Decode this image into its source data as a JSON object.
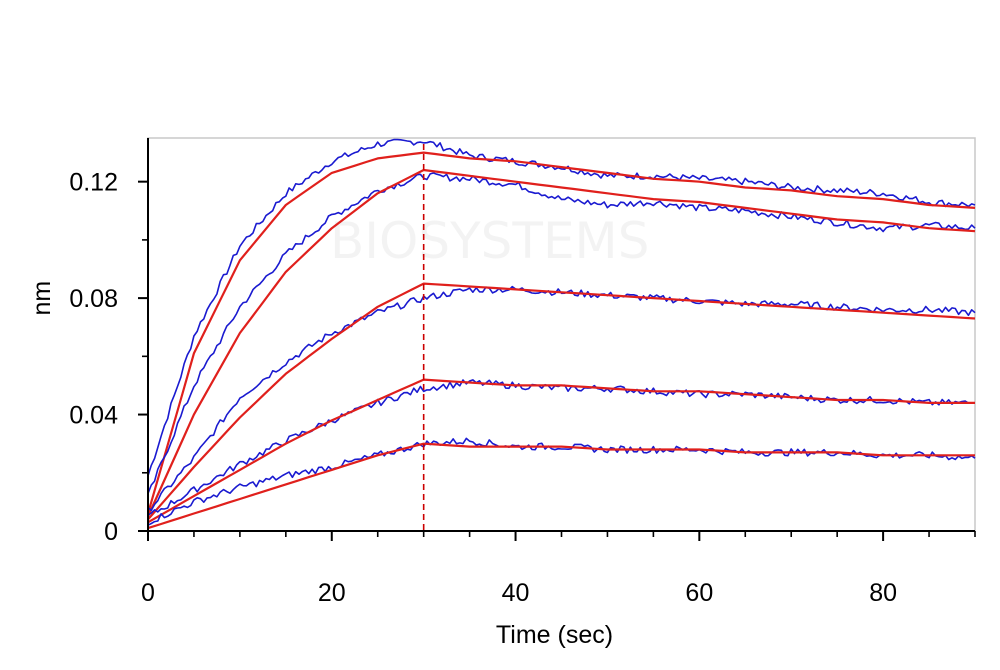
{
  "chart_data": {
    "type": "line",
    "title": "",
    "xlabel": "Time (sec)",
    "ylabel": "nm",
    "xlim": [
      0,
      90
    ],
    "ylim": [
      0,
      0.135
    ],
    "x_ticks": [
      0,
      20,
      40,
      60,
      80
    ],
    "x_tick_labels": [
      "0",
      "20",
      "40",
      "60",
      "80"
    ],
    "y_ticks": [
      0,
      0.04,
      0.08,
      0.12
    ],
    "y_tick_labels": [
      "0",
      "0.04",
      "0.08",
      "0.12"
    ],
    "grid": false,
    "legend": "none",
    "association_end_x": 30,
    "x": [
      0,
      5,
      10,
      15,
      20,
      25,
      30,
      35,
      40,
      45,
      50,
      55,
      60,
      65,
      70,
      75,
      80,
      85,
      90
    ],
    "series": [
      {
        "role": "measured",
        "values": [
          0.019,
          0.067,
          0.098,
          0.116,
          0.127,
          0.133,
          0.134,
          0.129,
          0.127,
          0.125,
          0.122,
          0.122,
          0.121,
          0.12,
          0.118,
          0.117,
          0.116,
          0.113,
          0.112
        ]
      },
      {
        "role": "fit",
        "values": [
          0.006,
          0.061,
          0.093,
          0.112,
          0.123,
          0.128,
          0.13,
          0.128,
          0.127,
          0.125,
          0.123,
          0.121,
          0.12,
          0.118,
          0.117,
          0.115,
          0.114,
          0.112,
          0.111
        ]
      },
      {
        "role": "measured",
        "values": [
          0.012,
          0.05,
          0.077,
          0.095,
          0.108,
          0.117,
          0.122,
          0.121,
          0.119,
          0.114,
          0.112,
          0.113,
          0.111,
          0.11,
          0.108,
          0.106,
          0.104,
          0.105,
          0.104
        ]
      },
      {
        "role": "fit",
        "values": [
          0.005,
          0.04,
          0.068,
          0.089,
          0.104,
          0.116,
          0.124,
          0.122,
          0.12,
          0.118,
          0.116,
          0.114,
          0.113,
          0.111,
          0.109,
          0.107,
          0.106,
          0.104,
          0.103
        ]
      },
      {
        "role": "measured",
        "values": [
          0.007,
          0.025,
          0.046,
          0.058,
          0.068,
          0.075,
          0.08,
          0.083,
          0.083,
          0.082,
          0.081,
          0.08,
          0.079,
          0.078,
          0.078,
          0.077,
          0.076,
          0.076,
          0.075
        ]
      },
      {
        "role": "fit",
        "values": [
          0.004,
          0.022,
          0.039,
          0.054,
          0.066,
          0.077,
          0.085,
          0.084,
          0.083,
          0.082,
          0.081,
          0.08,
          0.079,
          0.078,
          0.077,
          0.076,
          0.075,
          0.074,
          0.073
        ]
      },
      {
        "role": "measured",
        "values": [
          0.005,
          0.014,
          0.023,
          0.031,
          0.038,
          0.044,
          0.049,
          0.051,
          0.05,
          0.049,
          0.049,
          0.048,
          0.047,
          0.047,
          0.046,
          0.045,
          0.045,
          0.044,
          0.044
        ]
      },
      {
        "role": "fit",
        "values": [
          0.003,
          0.012,
          0.021,
          0.03,
          0.038,
          0.045,
          0.052,
          0.051,
          0.05,
          0.05,
          0.049,
          0.048,
          0.048,
          0.047,
          0.046,
          0.045,
          0.045,
          0.044,
          0.044
        ]
      },
      {
        "role": "measured",
        "values": [
          0.003,
          0.01,
          0.015,
          0.019,
          0.022,
          0.026,
          0.03,
          0.031,
          0.029,
          0.029,
          0.028,
          0.028,
          0.028,
          0.027,
          0.027,
          0.027,
          0.026,
          0.026,
          0.025
        ]
      },
      {
        "role": "fit",
        "values": [
          0.001,
          0.006,
          0.011,
          0.016,
          0.021,
          0.026,
          0.03,
          0.029,
          0.029,
          0.029,
          0.028,
          0.028,
          0.028,
          0.027,
          0.027,
          0.027,
          0.026,
          0.026,
          0.026
        ]
      }
    ],
    "colors": {
      "measured": "#1a1ad0",
      "fit": "#e0201c",
      "marker_line": "#cc0000",
      "axis": "#000000",
      "plot_border": "#c8c8c8"
    }
  },
  "watermark": {
    "text": "BIOSYSTEMS"
  }
}
